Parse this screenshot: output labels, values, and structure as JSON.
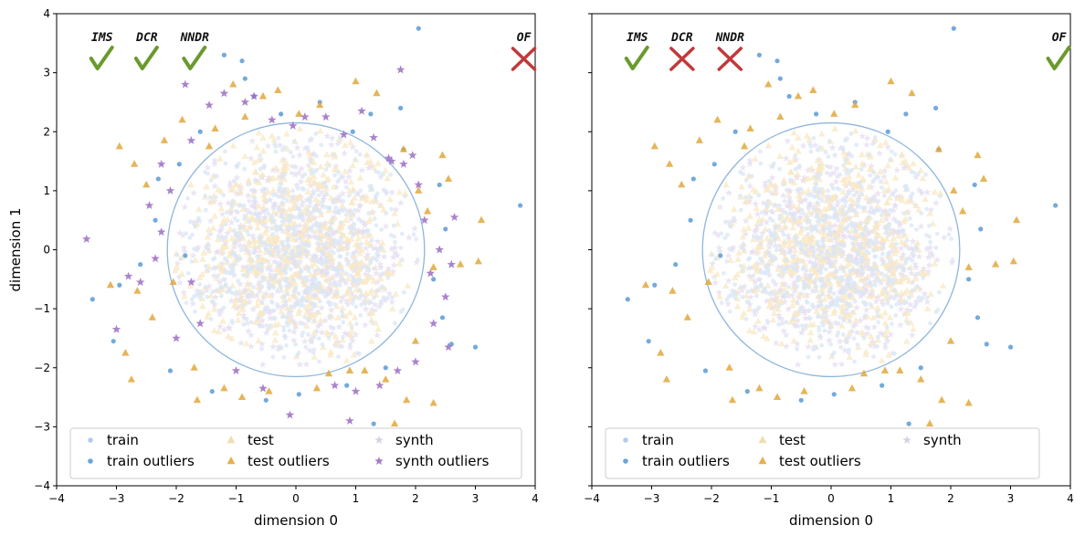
{
  "chart_data": [
    {
      "type": "scatter",
      "panel": "left",
      "xlabel": "dimension 0",
      "ylabel": "dimension 1",
      "xlim": [
        -4,
        4
      ],
      "ylim": [
        -4,
        4
      ],
      "xticks": [
        "−4",
        "−3",
        "−2",
        "−1",
        "0",
        "1",
        "2",
        "3",
        "4"
      ],
      "yticks": [
        "−4",
        "−3",
        "−2",
        "−1",
        "0",
        "1",
        "2",
        "3",
        "4"
      ],
      "circle": {
        "center": [
          0,
          0
        ],
        "radius": 2.15
      },
      "metrics": [
        {
          "label": "IMS",
          "x": -3.5,
          "status": "pass"
        },
        {
          "label": "DCR",
          "x": -2.75,
          "status": "pass"
        },
        {
          "label": "NNDR",
          "x": -1.95,
          "status": "pass"
        },
        {
          "label": "OF",
          "x": 3.55,
          "status": "fail"
        }
      ],
      "legend": {
        "location": "lower center",
        "entries": [
          {
            "label": "train",
            "marker": "circle",
            "color": "#a8c8e8"
          },
          {
            "label": "train outliers",
            "marker": "circle",
            "color": "#5b9bd5"
          },
          {
            "label": "test",
            "marker": "triangle",
            "color": "#f0d9a6"
          },
          {
            "label": "test outliers",
            "marker": "triangle",
            "color": "#e0a83c"
          },
          {
            "label": "synth",
            "marker": "star",
            "color": "#d6cbe8"
          },
          {
            "label": "synth outliers",
            "marker": "star",
            "color": "#9b6dc2"
          }
        ]
      },
      "series": [
        {
          "name": "train outliers",
          "marker": "circle",
          "color": "#5b9bd5",
          "points": [
            [
              -3.4,
              -0.84
            ],
            [
              -3.05,
              -1.55
            ],
            [
              -2.3,
              1.2
            ],
            [
              -2.1,
              -2.05
            ],
            [
              -1.85,
              -0.1
            ],
            [
              -1.6,
              2.0
            ],
            [
              -1.2,
              3.3
            ],
            [
              -0.9,
              3.2
            ],
            [
              -0.7,
              2.6
            ],
            [
              -0.25,
              2.3
            ],
            [
              0.4,
              2.5
            ],
            [
              0.95,
              2.0
            ],
            [
              1.25,
              2.3
            ],
            [
              1.8,
              1.7
            ],
            [
              2.05,
              3.75
            ],
            [
              2.4,
              1.1
            ],
            [
              2.3,
              -0.5
            ],
            [
              2.6,
              -1.6
            ],
            [
              3.0,
              -1.65
            ],
            [
              3.75,
              0.75
            ],
            [
              1.5,
              -2.0
            ],
            [
              0.85,
              -2.3
            ],
            [
              -0.5,
              -2.55
            ],
            [
              -1.4,
              -2.4
            ],
            [
              -2.6,
              -0.25
            ],
            [
              -2.35,
              0.5
            ],
            [
              -0.85,
              2.9
            ],
            [
              1.75,
              2.4
            ],
            [
              2.5,
              0.35
            ],
            [
              -2.95,
              -0.6
            ],
            [
              0.05,
              -2.45
            ],
            [
              1.3,
              -2.95
            ],
            [
              2.45,
              -1.15
            ],
            [
              -1.95,
              1.45
            ]
          ]
        },
        {
          "name": "test outliers",
          "marker": "triangle",
          "color": "#e0a83c",
          "points": [
            [
              -3.1,
              -0.6
            ],
            [
              -2.95,
              1.75
            ],
            [
              -2.85,
              -1.75
            ],
            [
              -2.75,
              -2.2
            ],
            [
              -2.7,
              1.45
            ],
            [
              -2.65,
              -0.7
            ],
            [
              -2.5,
              1.1
            ],
            [
              -2.4,
              -1.15
            ],
            [
              -2.2,
              1.85
            ],
            [
              -2.05,
              -0.55
            ],
            [
              -1.9,
              2.2
            ],
            [
              -1.7,
              -2.0
            ],
            [
              -1.65,
              -2.55
            ],
            [
              -1.35,
              2.05
            ],
            [
              -1.2,
              -2.35
            ],
            [
              -1.05,
              2.8
            ],
            [
              -0.85,
              2.25
            ],
            [
              -0.55,
              2.6
            ],
            [
              -0.45,
              -2.4
            ],
            [
              -0.3,
              2.7
            ],
            [
              0.05,
              2.3
            ],
            [
              0.35,
              -2.35
            ],
            [
              0.4,
              2.45
            ],
            [
              0.55,
              -2.1
            ],
            [
              0.9,
              -2.05
            ],
            [
              1.0,
              2.85
            ],
            [
              1.15,
              -2.05
            ],
            [
              1.35,
              2.65
            ],
            [
              1.5,
              -2.2
            ],
            [
              1.65,
              -2.95
            ],
            [
              1.8,
              1.7
            ],
            [
              1.85,
              -2.55
            ],
            [
              2.0,
              -1.55
            ],
            [
              2.05,
              1.0
            ],
            [
              2.2,
              0.65
            ],
            [
              2.3,
              -0.3
            ],
            [
              2.45,
              1.6
            ],
            [
              2.55,
              1.2
            ],
            [
              2.75,
              -0.25
            ],
            [
              3.05,
              -0.2
            ],
            [
              3.1,
              0.5
            ],
            [
              2.3,
              -2.6
            ],
            [
              -1.45,
              1.75
            ],
            [
              -0.9,
              -2.5
            ]
          ]
        },
        {
          "name": "synth outliers",
          "marker": "star",
          "color": "#9b6dc2",
          "points": [
            [
              -3.5,
              0.18
            ],
            [
              -3.0,
              -1.35
            ],
            [
              -2.8,
              -0.45
            ],
            [
              -2.6,
              -0.55
            ],
            [
              -2.45,
              0.75
            ],
            [
              -2.35,
              -0.15
            ],
            [
              -2.25,
              0.3
            ],
            [
              -2.1,
              1.0
            ],
            [
              -2.0,
              -1.5
            ],
            [
              -1.85,
              2.8
            ],
            [
              -1.75,
              1.85
            ],
            [
              -1.6,
              -1.25
            ],
            [
              -1.45,
              2.45
            ],
            [
              -1.2,
              2.65
            ],
            [
              -1.0,
              -2.05
            ],
            [
              -0.85,
              2.5
            ],
            [
              -0.7,
              2.6
            ],
            [
              -0.55,
              -2.35
            ],
            [
              -0.4,
              2.2
            ],
            [
              -0.1,
              -2.8
            ],
            [
              0.15,
              2.25
            ],
            [
              0.5,
              2.25
            ],
            [
              0.65,
              -2.3
            ],
            [
              0.8,
              1.95
            ],
            [
              1.0,
              -2.4
            ],
            [
              1.1,
              2.35
            ],
            [
              1.3,
              1.9
            ],
            [
              1.4,
              -2.3
            ],
            [
              1.6,
              1.5
            ],
            [
              1.7,
              -2.05
            ],
            [
              1.8,
              1.45
            ],
            [
              1.95,
              1.6
            ],
            [
              2.0,
              -1.9
            ],
            [
              2.05,
              1.1
            ],
            [
              2.15,
              0.5
            ],
            [
              2.25,
              -0.4
            ],
            [
              2.4,
              0.0
            ],
            [
              2.5,
              -0.8
            ],
            [
              2.6,
              -0.25
            ],
            [
              2.65,
              0.55
            ],
            [
              2.55,
              -1.65
            ],
            [
              1.75,
              3.05
            ],
            [
              0.9,
              -2.9
            ],
            [
              -1.75,
              -0.55
            ],
            [
              -2.25,
              1.45
            ],
            [
              -0.05,
              2.1
            ],
            [
              1.55,
              1.55
            ],
            [
              2.3,
              -1.25
            ]
          ]
        }
      ]
    },
    {
      "type": "scatter",
      "panel": "right",
      "xlabel": "dimension 0",
      "xlim": [
        -4,
        4
      ],
      "ylim": [
        -4,
        4
      ],
      "xticks": [
        "−4",
        "−3",
        "−2",
        "−1",
        "0",
        "1",
        "2",
        "3",
        "4"
      ],
      "circle": {
        "center": [
          0,
          0
        ],
        "radius": 2.15
      },
      "metrics": [
        {
          "label": "IMS",
          "x": -3.5,
          "status": "pass"
        },
        {
          "label": "DCR",
          "x": -2.75,
          "status": "fail"
        },
        {
          "label": "NNDR",
          "x": -1.95,
          "status": "fail"
        },
        {
          "label": "OF",
          "x": 3.55,
          "status": "pass"
        }
      ],
      "legend": {
        "location": "lower center",
        "entries": [
          {
            "label": "train",
            "marker": "circle",
            "color": "#a8c8e8"
          },
          {
            "label": "train outliers",
            "marker": "circle",
            "color": "#5b9bd5"
          },
          {
            "label": "test",
            "marker": "triangle",
            "color": "#f0d9a6"
          },
          {
            "label": "test outliers",
            "marker": "triangle",
            "color": "#e0a83c"
          },
          {
            "label": "synth",
            "marker": "star",
            "color": "#d6cbe8"
          }
        ]
      },
      "series": [
        {
          "name": "train outliers",
          "marker": "circle",
          "color": "#5b9bd5",
          "points": [
            [
              -3.4,
              -0.84
            ],
            [
              -3.05,
              -1.55
            ],
            [
              -2.3,
              1.2
            ],
            [
              -2.1,
              -2.05
            ],
            [
              -1.85,
              -0.1
            ],
            [
              -1.6,
              2.0
            ],
            [
              -1.2,
              3.3
            ],
            [
              -0.9,
              3.2
            ],
            [
              -0.7,
              2.6
            ],
            [
              -0.25,
              2.3
            ],
            [
              0.4,
              2.5
            ],
            [
              0.95,
              2.0
            ],
            [
              1.25,
              2.3
            ],
            [
              1.8,
              1.7
            ],
            [
              2.05,
              3.75
            ],
            [
              2.4,
              1.1
            ],
            [
              2.3,
              -0.5
            ],
            [
              2.6,
              -1.6
            ],
            [
              3.0,
              -1.65
            ],
            [
              3.75,
              0.75
            ],
            [
              1.5,
              -2.0
            ],
            [
              0.85,
              -2.3
            ],
            [
              -0.5,
              -2.55
            ],
            [
              -1.4,
              -2.4
            ],
            [
              -2.6,
              -0.25
            ],
            [
              -2.35,
              0.5
            ],
            [
              -0.85,
              2.9
            ],
            [
              1.75,
              2.4
            ],
            [
              2.5,
              0.35
            ],
            [
              -2.95,
              -0.6
            ],
            [
              0.05,
              -2.45
            ],
            [
              1.3,
              -2.95
            ],
            [
              2.45,
              -1.15
            ],
            [
              -1.95,
              1.45
            ]
          ]
        },
        {
          "name": "test outliers",
          "marker": "triangle",
          "color": "#e0a83c",
          "points": [
            [
              -3.1,
              -0.6
            ],
            [
              -2.95,
              1.75
            ],
            [
              -2.85,
              -1.75
            ],
            [
              -2.75,
              -2.2
            ],
            [
              -2.7,
              1.45
            ],
            [
              -2.65,
              -0.7
            ],
            [
              -2.5,
              1.1
            ],
            [
              -2.4,
              -1.15
            ],
            [
              -2.2,
              1.85
            ],
            [
              -2.05,
              -0.55
            ],
            [
              -1.9,
              2.2
            ],
            [
              -1.7,
              -2.0
            ],
            [
              -1.65,
              -2.55
            ],
            [
              -1.35,
              2.05
            ],
            [
              -1.2,
              -2.35
            ],
            [
              -1.05,
              2.8
            ],
            [
              -0.85,
              2.25
            ],
            [
              -0.55,
              2.6
            ],
            [
              -0.45,
              -2.4
            ],
            [
              -0.3,
              2.7
            ],
            [
              0.05,
              2.3
            ],
            [
              0.35,
              -2.35
            ],
            [
              0.4,
              2.45
            ],
            [
              0.55,
              -2.1
            ],
            [
              0.9,
              -2.05
            ],
            [
              1.0,
              2.85
            ],
            [
              1.15,
              -2.05
            ],
            [
              1.35,
              2.65
            ],
            [
              1.5,
              -2.2
            ],
            [
              1.65,
              -2.95
            ],
            [
              1.8,
              1.7
            ],
            [
              1.85,
              -2.55
            ],
            [
              2.0,
              -1.55
            ],
            [
              2.05,
              1.0
            ],
            [
              2.2,
              0.65
            ],
            [
              2.3,
              -0.3
            ],
            [
              2.45,
              1.6
            ],
            [
              2.55,
              1.2
            ],
            [
              2.75,
              -0.25
            ],
            [
              3.05,
              -0.2
            ],
            [
              3.1,
              0.5
            ],
            [
              2.3,
              -2.6
            ],
            [
              -1.45,
              1.75
            ],
            [
              -0.9,
              -2.5
            ]
          ]
        }
      ]
    }
  ],
  "bulk": {
    "train_color": "#d9e7f5",
    "test_color": "#f8e8c4",
    "synth_color": "#e4dcf0",
    "circle_color": "#8fb6dd",
    "check_color": "#6a9a2e",
    "cross_color": "#c0393b"
  }
}
